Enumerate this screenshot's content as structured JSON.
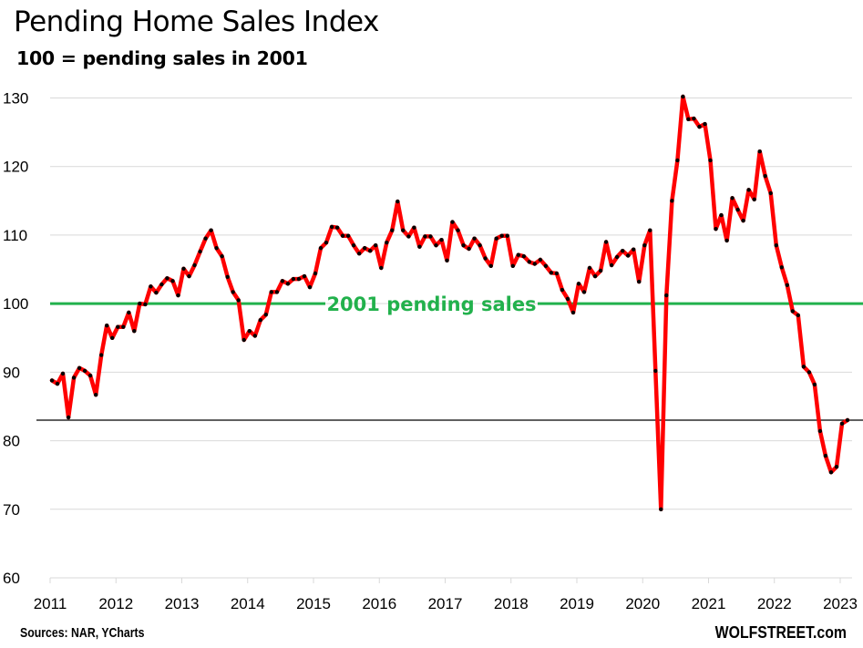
{
  "title": "Pending Home Sales Index",
  "subtitle": "100 = pending sales in 2001",
  "source": "Sources: NAR, YCharts",
  "brand": "WOLFSTREET.com",
  "colors": {
    "series": "#ff0000",
    "markers": "#000000",
    "reference_line": "#22b14c",
    "current_level_line": "#000000",
    "gridlines": "#d9d9d9"
  },
  "chart_data": {
    "type": "line",
    "title": "Pending Home Sales Index",
    "subtitle": "100 = pending sales in 2001",
    "xlabel": "",
    "ylabel": "",
    "ylim": [
      60,
      130
    ],
    "yticks": [
      60,
      70,
      80,
      90,
      100,
      110,
      120,
      130
    ],
    "xlim": [
      "2011-01",
      "2023-02"
    ],
    "xticks": [
      "2011",
      "2012",
      "2013",
      "2014",
      "2015",
      "2016",
      "2017",
      "2018",
      "2019",
      "2020",
      "2021",
      "2022",
      "2023"
    ],
    "grid": "horizontal",
    "legend": "none",
    "x_start": "2011-01",
    "x_frequency": "monthly",
    "series": [
      {
        "name": "Pending Home Sales Index",
        "values": [
          88.8,
          88.3,
          89.8,
          83.4,
          89.2,
          90.6,
          90.2,
          89.5,
          86.7,
          92.5,
          96.8,
          95.0,
          96.6,
          96.6,
          98.7,
          96.0,
          100.0,
          99.9,
          102.5,
          101.6,
          102.8,
          103.7,
          103.3,
          101.2,
          105.1,
          104.0,
          105.6,
          107.6,
          109.5,
          110.7,
          108.1,
          106.9,
          103.9,
          101.7,
          100.5,
          94.7,
          96.0,
          95.3,
          97.6,
          98.4,
          101.7,
          101.7,
          103.3,
          102.9,
          103.6,
          103.6,
          104.0,
          102.4,
          104.4,
          108.1,
          108.9,
          111.2,
          111.1,
          109.9,
          109.9,
          108.5,
          107.3,
          108.1,
          107.7,
          108.5,
          105.2,
          108.9,
          110.7,
          114.9,
          110.7,
          109.8,
          111.1,
          108.3,
          109.8,
          109.8,
          108.5,
          109.3,
          106.3,
          111.9,
          110.7,
          108.5,
          108.0,
          109.5,
          108.5,
          106.6,
          105.5,
          109.5,
          109.9,
          109.9,
          105.5,
          107.1,
          106.9,
          106.1,
          105.8,
          106.4,
          105.5,
          104.5,
          104.4,
          102.0,
          100.7,
          98.7,
          102.9,
          101.7,
          105.2,
          104.0,
          104.8,
          109.0,
          105.6,
          106.8,
          107.7,
          107.0,
          107.9,
          103.2,
          108.5,
          110.7,
          90.2,
          70.0,
          101.2,
          115.0,
          120.9,
          130.2,
          126.9,
          127.0,
          125.8,
          126.2,
          120.9,
          110.9,
          112.9,
          109.2,
          115.4,
          113.7,
          112.1,
          116.6,
          115.2,
          122.2,
          118.6,
          116.1,
          108.5,
          105.3,
          102.7,
          98.9,
          98.3,
          90.8,
          90.0,
          88.2,
          81.4,
          77.8,
          75.4,
          76.2,
          82.5,
          83.0
        ]
      }
    ],
    "annotations": [
      {
        "type": "hline",
        "y": 100,
        "label": "2001 pending sales",
        "color": "#22b14c"
      },
      {
        "type": "hline",
        "y": 83.0,
        "label": "",
        "color": "#000000"
      }
    ]
  }
}
